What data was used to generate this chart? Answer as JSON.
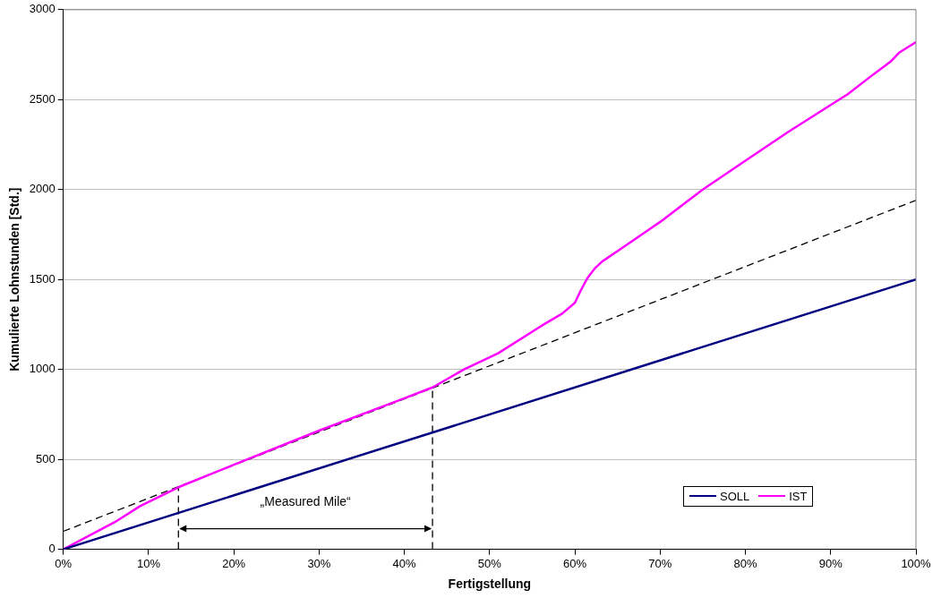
{
  "chart_data": {
    "type": "line",
    "xlabel": "Fertigstellung",
    "ylabel": "Kumulierte Lohnstunden [Std.]",
    "xlim": [
      0,
      100
    ],
    "xticks": [
      {
        "value": 0,
        "label": "0%"
      },
      {
        "value": 10,
        "label": "10%"
      },
      {
        "value": 20,
        "label": "20%"
      },
      {
        "value": 30,
        "label": "30%"
      },
      {
        "value": 40,
        "label": "40%"
      },
      {
        "value": 50,
        "label": "50%"
      },
      {
        "value": 60,
        "label": "60%"
      },
      {
        "value": 70,
        "label": "70%"
      },
      {
        "value": 80,
        "label": "80%"
      },
      {
        "value": 90,
        "label": "90%"
      },
      {
        "value": 100,
        "label": "100%"
      }
    ],
    "ylim": [
      0,
      3000
    ],
    "yticks": [
      0,
      500,
      1000,
      1500,
      2000,
      2500,
      3000
    ],
    "grid": "y",
    "legend": "bottom right",
    "marker": "none",
    "series": [
      {
        "name": "SOLL",
        "color": "#000080",
        "line_style": "solid",
        "x": [
          0,
          100
        ],
        "values": [
          0,
          1500
        ]
      },
      {
        "name": "IST",
        "color": "#ff00ff",
        "line_style": "solid",
        "x": [
          0,
          6,
          9,
          13.5,
          20,
          30,
          40,
          43.3,
          47,
          51,
          56,
          58.5,
          60,
          60.7,
          61.5,
          62.3,
          63.2,
          66,
          70,
          75,
          80,
          85,
          90,
          92,
          95,
          97,
          98,
          100
        ],
        "values": [
          0,
          150,
          240,
          345,
          470,
          660,
          840,
          900,
          1000,
          1090,
          1240,
          1310,
          1370,
          1440,
          1510,
          1560,
          1600,
          1690,
          1820,
          2000,
          2160,
          2320,
          2470,
          2530,
          2640,
          2710,
          2760,
          2820
        ]
      },
      {
        "color": "#000000",
        "line_style": "dashed",
        "x": [
          0,
          100
        ],
        "values": [
          100,
          1940
        ]
      },
      {
        "color": "#000000",
        "line_style": "dashed",
        "x": [
          13.5,
          13.5
        ],
        "values": [
          0,
          345
        ]
      },
      {
        "color": "#000000",
        "line_style": "dashed",
        "x": [
          43.3,
          43.3
        ],
        "values": [
          0,
          900
        ]
      }
    ],
    "annotations": [
      "„Measured Mile“"
    ]
  }
}
